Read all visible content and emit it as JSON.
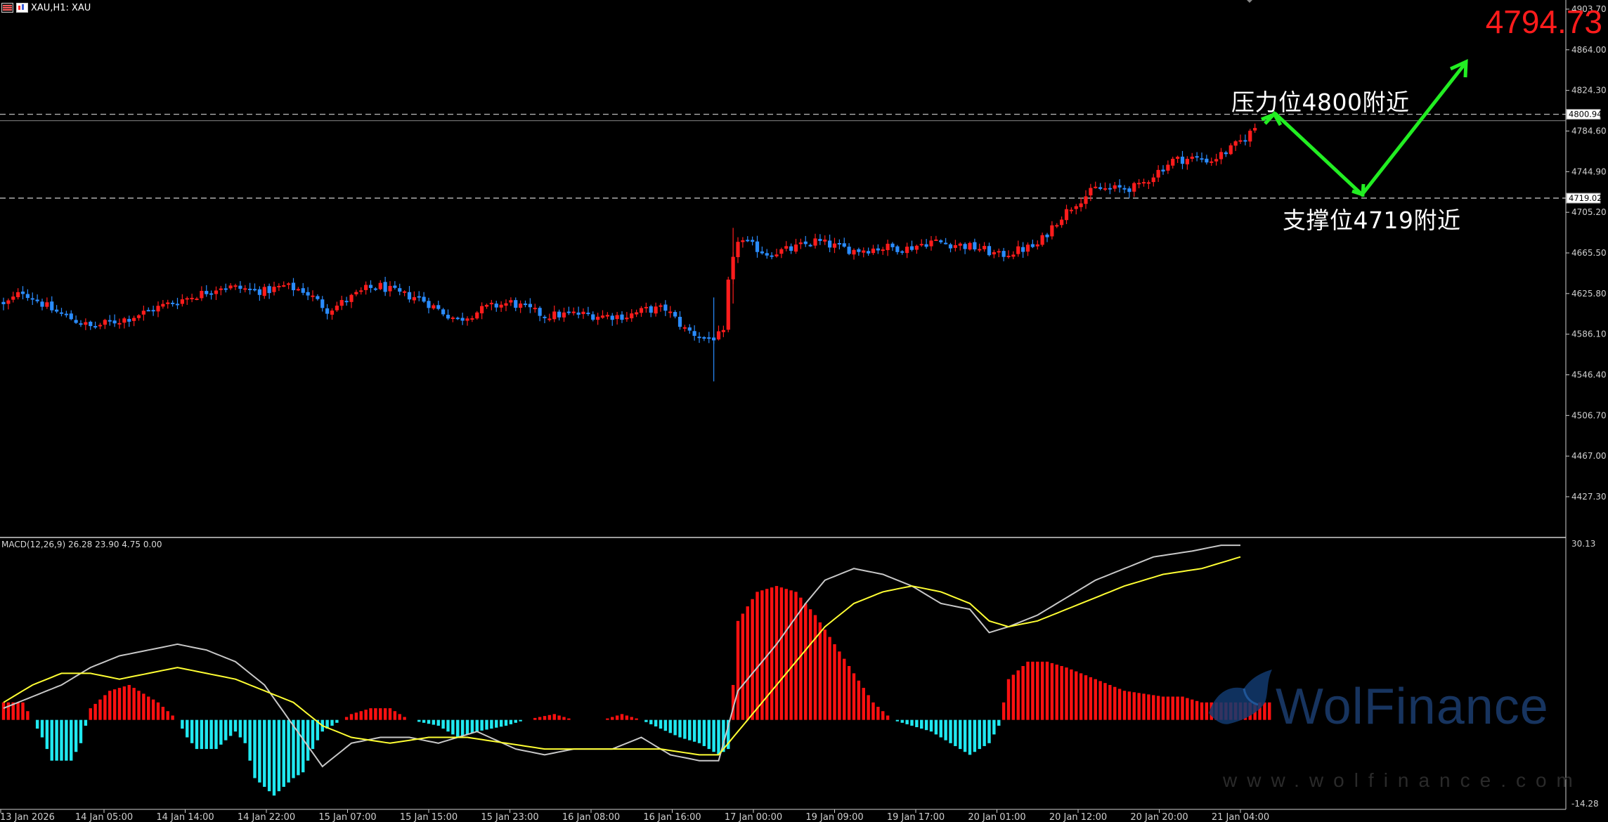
{
  "window": {
    "title": "XAU,H1: XAU"
  },
  "annotations": {
    "current_price": "4794.73",
    "resistance_label": "压力位4800附近",
    "support_label": "支撑位4719附近"
  },
  "indicator": {
    "label": "MACD(12,26,9) 26.28 23.90 4.75 0.00",
    "top_value": "30.13",
    "bottom_value": "-14.28"
  },
  "watermark": {
    "name": "WolFinance",
    "url": "www.wolfinance.com"
  },
  "colors": {
    "background": "#000000",
    "bull_candle": "#ff1c1c",
    "bear_candle": "#2a8cff",
    "macd_positive": "#ff1010",
    "macd_negative": "#20e8f0",
    "macd_line": "#c8c8c8",
    "signal_line": "#ffff33",
    "arrow": "#22ee22",
    "highlight_price": "#ff1c1c"
  },
  "chart_data": {
    "type": "candlestick",
    "symbol": "XAU",
    "timeframe": "H1",
    "price_axis": {
      "ticks": [
        "4903.70",
        "4864.00",
        "4824.30",
        "4784.60",
        "4744.90",
        "4705.20",
        "4665.50",
        "4625.80",
        "4586.10",
        "4546.40",
        "4506.70",
        "4467.00",
        "4427.30"
      ],
      "range": [
        4392,
        4916
      ],
      "marked_levels": [
        {
          "value": 4800.94,
          "label": "4800.94"
        },
        {
          "value": 4719.02,
          "label": "4719.02"
        }
      ]
    },
    "time_axis": {
      "labels": [
        "13 Jan 2026",
        "14 Jan 05:00",
        "14 Jan 14:00",
        "14 Jan 22:00",
        "15 Jan 07:00",
        "15 Jan 15:00",
        "15 Jan 23:00",
        "16 Jan 08:00",
        "16 Jan 16:00",
        "17 Jan 00:00",
        "19 Jan 09:00",
        "19 Jan 17:00",
        "20 Jan 01:00",
        "20 Jan 12:00",
        "20 Jan 20:00",
        "21 Jan 04:00"
      ]
    },
    "close_path": [
      [
        0,
        4614
      ],
      [
        4,
        4628
      ],
      [
        10,
        4610
      ],
      [
        18,
        4593
      ],
      [
        26,
        4602
      ],
      [
        33,
        4614
      ],
      [
        41,
        4626
      ],
      [
        45,
        4633
      ],
      [
        54,
        4628
      ],
      [
        58,
        4633
      ],
      [
        62,
        4629
      ],
      [
        64,
        4622
      ],
      [
        67,
        4610
      ],
      [
        69,
        4614
      ],
      [
        75,
        4630
      ],
      [
        78,
        4633
      ],
      [
        82,
        4625
      ],
      [
        86,
        4622
      ],
      [
        90,
        4610
      ],
      [
        94,
        4600
      ],
      [
        100,
        4612
      ],
      [
        105,
        4617
      ],
      [
        112,
        4604
      ],
      [
        118,
        4606
      ],
      [
        124,
        4604
      ],
      [
        129,
        4604
      ],
      [
        133,
        4610
      ],
      [
        137,
        4611
      ],
      [
        141,
        4591
      ],
      [
        145,
        4582
      ],
      [
        147,
        4583
      ],
      [
        149,
        4586
      ],
      [
        150,
        4636
      ],
      [
        152,
        4679
      ],
      [
        158,
        4665
      ],
      [
        163,
        4669
      ],
      [
        168,
        4677
      ],
      [
        172,
        4672
      ],
      [
        176,
        4668
      ],
      [
        183,
        4671
      ],
      [
        187,
        4670
      ],
      [
        192,
        4677
      ],
      [
        198,
        4673
      ],
      [
        202,
        4670
      ],
      [
        206,
        4663
      ],
      [
        210,
        4668
      ],
      [
        214,
        4673
      ],
      [
        218,
        4697
      ],
      [
        222,
        4715
      ],
      [
        226,
        4728
      ],
      [
        230,
        4728
      ],
      [
        235,
        4730
      ],
      [
        238,
        4742
      ],
      [
        242,
        4756
      ],
      [
        246,
        4758
      ],
      [
        250,
        4756
      ],
      [
        254,
        4767
      ],
      [
        257,
        4778
      ],
      [
        260,
        4793
      ]
    ],
    "macd": {
      "histogram": [
        [
          0,
          3
        ],
        [
          4,
          3
        ],
        [
          6,
          0
        ],
        [
          8,
          -3
        ],
        [
          10,
          -7
        ],
        [
          14,
          -7
        ],
        [
          16,
          -4
        ],
        [
          18,
          2
        ],
        [
          22,
          5
        ],
        [
          26,
          6
        ],
        [
          28,
          5
        ],
        [
          32,
          3
        ],
        [
          36,
          0
        ],
        [
          38,
          -3
        ],
        [
          40,
          -5
        ],
        [
          44,
          -5
        ],
        [
          48,
          -2
        ],
        [
          50,
          -4
        ],
        [
          52,
          -10
        ],
        [
          56,
          -13
        ],
        [
          60,
          -10
        ],
        [
          62,
          -9
        ],
        [
          64,
          -5
        ],
        [
          66,
          -2
        ],
        [
          72,
          1
        ],
        [
          76,
          2
        ],
        [
          80,
          2
        ],
        [
          84,
          0
        ],
        [
          90,
          -1
        ],
        [
          94,
          -3
        ],
        [
          98,
          -2
        ],
        [
          104,
          -1
        ],
        [
          108,
          0
        ],
        [
          114,
          1
        ],
        [
          118,
          0
        ],
        [
          124,
          0
        ],
        [
          128,
          1
        ],
        [
          132,
          0
        ],
        [
          140,
          -3
        ],
        [
          144,
          -4
        ],
        [
          148,
          -6
        ],
        [
          150,
          -5
        ],
        [
          152,
          17
        ],
        [
          156,
          22
        ],
        [
          160,
          23
        ],
        [
          164,
          22
        ],
        [
          168,
          18
        ],
        [
          172,
          13
        ],
        [
          176,
          8
        ],
        [
          180,
          3
        ],
        [
          184,
          0
        ],
        [
          188,
          -1
        ],
        [
          192,
          -2
        ],
        [
          196,
          -4
        ],
        [
          200,
          -6
        ],
        [
          204,
          -4
        ],
        [
          206,
          -1
        ],
        [
          208,
          7
        ],
        [
          212,
          10
        ],
        [
          216,
          10
        ],
        [
          220,
          9
        ],
        [
          226,
          7
        ],
        [
          232,
          5
        ],
        [
          240,
          4
        ],
        [
          244,
          4
        ],
        [
          248,
          3
        ],
        [
          252,
          3
        ],
        [
          258,
          3
        ],
        [
          262,
          3
        ]
      ],
      "macd_line": [
        [
          0,
          2
        ],
        [
          6,
          4
        ],
        [
          12,
          6
        ],
        [
          18,
          9
        ],
        [
          24,
          11
        ],
        [
          30,
          12
        ],
        [
          36,
          13
        ],
        [
          42,
          12
        ],
        [
          48,
          10
        ],
        [
          54,
          6
        ],
        [
          60,
          -1
        ],
        [
          66,
          -8
        ],
        [
          72,
          -4
        ],
        [
          78,
          -3
        ],
        [
          84,
          -3
        ],
        [
          90,
          -4
        ],
        [
          98,
          -2
        ],
        [
          106,
          -5
        ],
        [
          112,
          -6
        ],
        [
          118,
          -5
        ],
        [
          126,
          -5
        ],
        [
          132,
          -3
        ],
        [
          138,
          -6
        ],
        [
          144,
          -7
        ],
        [
          148,
          -7
        ],
        [
          152,
          5
        ],
        [
          156,
          9
        ],
        [
          160,
          13
        ],
        [
          166,
          20
        ],
        [
          170,
          24
        ],
        [
          176,
          26
        ],
        [
          182,
          25
        ],
        [
          188,
          23
        ],
        [
          194,
          20
        ],
        [
          200,
          19
        ],
        [
          204,
          15
        ],
        [
          208,
          16
        ],
        [
          214,
          18
        ],
        [
          220,
          21
        ],
        [
          226,
          24
        ],
        [
          232,
          26
        ],
        [
          238,
          28
        ],
        [
          246,
          29
        ],
        [
          252,
          30
        ],
        [
          256,
          30
        ]
      ],
      "signal_line": [
        [
          0,
          3
        ],
        [
          6,
          6
        ],
        [
          12,
          8
        ],
        [
          18,
          8
        ],
        [
          24,
          7
        ],
        [
          30,
          8
        ],
        [
          36,
          9
        ],
        [
          42,
          8
        ],
        [
          48,
          7
        ],
        [
          54,
          5
        ],
        [
          60,
          3
        ],
        [
          66,
          -1
        ],
        [
          72,
          -3
        ],
        [
          80,
          -4
        ],
        [
          88,
          -3
        ],
        [
          96,
          -3
        ],
        [
          104,
          -4
        ],
        [
          112,
          -5
        ],
        [
          120,
          -5
        ],
        [
          128,
          -5
        ],
        [
          136,
          -5
        ],
        [
          144,
          -6
        ],
        [
          148,
          -6
        ],
        [
          152,
          -2
        ],
        [
          158,
          4
        ],
        [
          164,
          10
        ],
        [
          170,
          16
        ],
        [
          176,
          20
        ],
        [
          182,
          22
        ],
        [
          188,
          23
        ],
        [
          194,
          22
        ],
        [
          200,
          20
        ],
        [
          204,
          17
        ],
        [
          208,
          16
        ],
        [
          214,
          17
        ],
        [
          220,
          19
        ],
        [
          226,
          21
        ],
        [
          232,
          23
        ],
        [
          240,
          25
        ],
        [
          248,
          26
        ],
        [
          256,
          28
        ]
      ],
      "range": [
        -14.28,
        30.13
      ]
    }
  }
}
